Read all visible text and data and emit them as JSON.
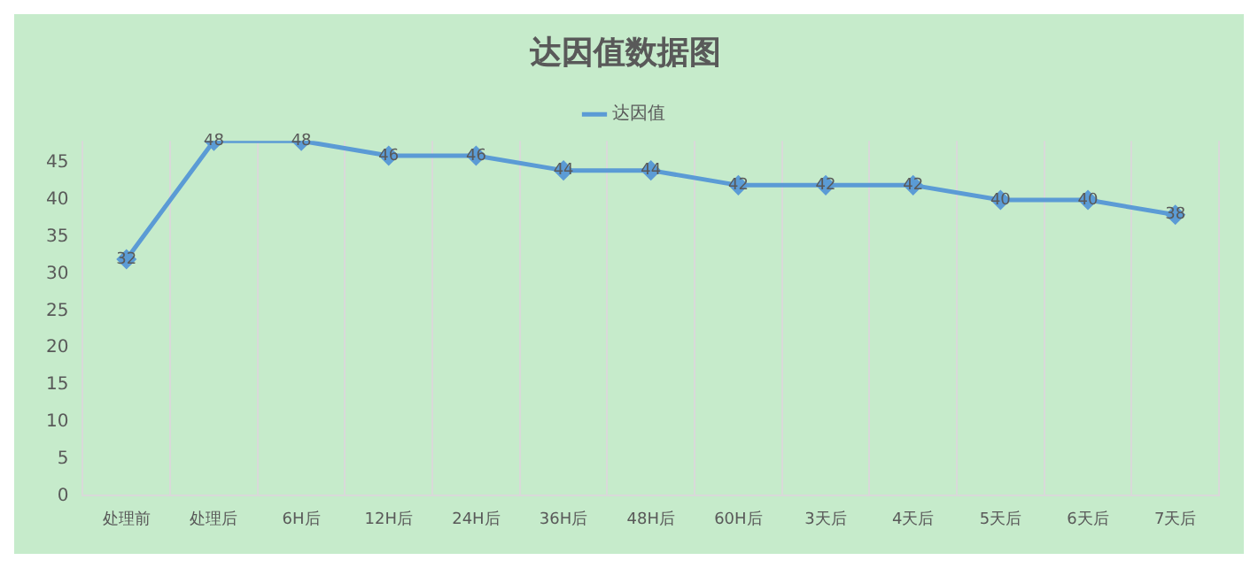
{
  "chart_data": {
    "type": "line",
    "title": "达因值数据图",
    "categories": [
      "处理前",
      "处理后",
      "6H后",
      "12H后",
      "24H后",
      "36H后",
      "48H后",
      "60H后",
      "3天后",
      "4天后",
      "5天后",
      "6天后",
      "7天后"
    ],
    "series": [
      {
        "name": "达因值",
        "color": "#5b9bd5",
        "values": [
          32,
          48,
          48,
          46,
          46,
          44,
          44,
          42,
          42,
          42,
          40,
          40,
          38
        ]
      }
    ],
    "ylim": [
      0,
      48
    ],
    "yticks": [
      0,
      5,
      10,
      15,
      20,
      25,
      30,
      35,
      40,
      45
    ],
    "grid": "x",
    "legend": "top",
    "marker": "diamond",
    "line_style": "solid",
    "data_labels": true
  }
}
